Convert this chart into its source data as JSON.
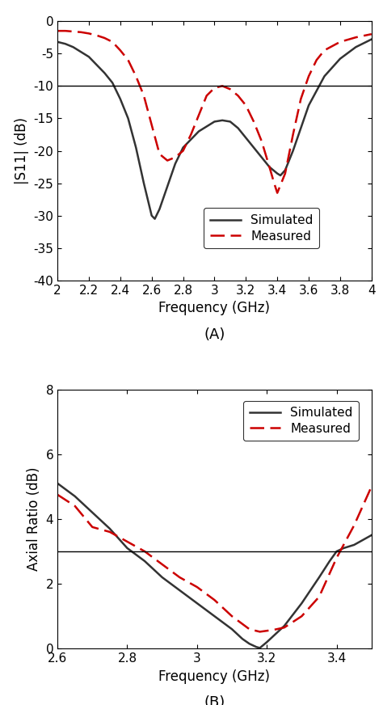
{
  "plot_A": {
    "xlim": [
      2.0,
      4.0
    ],
    "ylim": [
      -40,
      0
    ],
    "xlabel": "Frequency (GHz)",
    "ylabel": "|S11| (dB)",
    "hline_y": -10,
    "xticks": [
      2.0,
      2.2,
      2.4,
      2.6,
      2.8,
      3.0,
      3.2,
      3.4,
      3.6,
      3.8,
      4.0
    ],
    "yticks": [
      0,
      -5,
      -10,
      -15,
      -20,
      -25,
      -30,
      -35,
      -40
    ],
    "label_A": "(A)",
    "simulated_x": [
      2.0,
      2.05,
      2.1,
      2.2,
      2.3,
      2.35,
      2.4,
      2.45,
      2.5,
      2.55,
      2.6,
      2.62,
      2.65,
      2.7,
      2.75,
      2.8,
      2.9,
      3.0,
      3.05,
      3.1,
      3.15,
      3.2,
      3.25,
      3.3,
      3.35,
      3.4,
      3.42,
      3.45,
      3.5,
      3.55,
      3.6,
      3.7,
      3.8,
      3.9,
      4.0
    ],
    "simulated_y": [
      -3.2,
      -3.5,
      -4.0,
      -5.5,
      -8.0,
      -9.5,
      -12.0,
      -15.0,
      -19.5,
      -25.0,
      -30.0,
      -30.5,
      -29.0,
      -25.5,
      -22.0,
      -19.5,
      -17.0,
      -15.5,
      -15.3,
      -15.5,
      -16.5,
      -18.0,
      -19.5,
      -21.0,
      -22.5,
      -23.5,
      -23.8,
      -23.0,
      -20.0,
      -16.5,
      -13.0,
      -8.5,
      -5.8,
      -4.0,
      -2.8
    ],
    "measured_x": [
      2.0,
      2.05,
      2.1,
      2.15,
      2.2,
      2.25,
      2.3,
      2.35,
      2.4,
      2.45,
      2.5,
      2.55,
      2.6,
      2.65,
      2.7,
      2.75,
      2.8,
      2.85,
      2.9,
      2.95,
      3.0,
      3.05,
      3.1,
      3.15,
      3.2,
      3.25,
      3.3,
      3.35,
      3.38,
      3.4,
      3.45,
      3.5,
      3.55,
      3.6,
      3.65,
      3.7,
      3.8,
      3.9,
      4.0
    ],
    "measured_y": [
      -1.5,
      -1.5,
      -1.6,
      -1.7,
      -1.9,
      -2.2,
      -2.6,
      -3.2,
      -4.5,
      -6.0,
      -8.5,
      -11.5,
      -16.0,
      -20.5,
      -21.5,
      -21.0,
      -20.0,
      -17.5,
      -14.5,
      -11.5,
      -10.3,
      -10.0,
      -10.5,
      -11.5,
      -13.0,
      -15.5,
      -18.5,
      -22.5,
      -25.0,
      -26.5,
      -23.5,
      -17.5,
      -12.0,
      -8.5,
      -6.0,
      -4.5,
      -3.2,
      -2.5,
      -2.0
    ],
    "sim_color": "#333333",
    "meas_color": "#cc0000",
    "sim_lw": 1.8,
    "meas_lw": 1.8
  },
  "plot_B": {
    "xlim": [
      2.6,
      3.5
    ],
    "ylim": [
      0,
      8
    ],
    "xlabel": "Frequency (GHz)",
    "ylabel": "Axial Ratio (dB)",
    "hline_y": 3.0,
    "xticks": [
      2.6,
      2.8,
      3.0,
      3.2,
      3.4
    ],
    "yticks": [
      0,
      2,
      4,
      6,
      8
    ],
    "label_B": "(B)",
    "simulated_x": [
      2.6,
      2.65,
      2.7,
      2.75,
      2.8,
      2.85,
      2.9,
      2.95,
      3.0,
      3.05,
      3.1,
      3.13,
      3.15,
      3.17,
      3.18,
      3.2,
      3.25,
      3.3,
      3.35,
      3.38,
      3.4,
      3.42,
      3.45,
      3.5
    ],
    "simulated_y": [
      5.1,
      4.7,
      4.2,
      3.7,
      3.1,
      2.7,
      2.2,
      1.8,
      1.4,
      1.0,
      0.6,
      0.3,
      0.15,
      0.05,
      0.02,
      0.2,
      0.7,
      1.4,
      2.2,
      2.7,
      3.0,
      3.1,
      3.2,
      3.5
    ],
    "measured_x": [
      2.6,
      2.65,
      2.7,
      2.75,
      2.8,
      2.85,
      2.9,
      2.95,
      3.0,
      3.05,
      3.1,
      3.15,
      3.18,
      3.2,
      3.22,
      3.25,
      3.3,
      3.35,
      3.4,
      3.45,
      3.5
    ],
    "measured_y": [
      4.75,
      4.4,
      3.75,
      3.6,
      3.3,
      3.0,
      2.6,
      2.2,
      1.9,
      1.5,
      1.0,
      0.6,
      0.52,
      0.55,
      0.58,
      0.65,
      1.0,
      1.6,
      2.8,
      3.8,
      5.0
    ],
    "sim_color": "#333333",
    "meas_color": "#cc0000",
    "sim_lw": 1.8,
    "meas_lw": 1.8
  },
  "legend_sim_label": "Simulated",
  "legend_meas_label": "Measured",
  "fig_width": 4.74,
  "fig_height": 8.72,
  "dpi": 100
}
